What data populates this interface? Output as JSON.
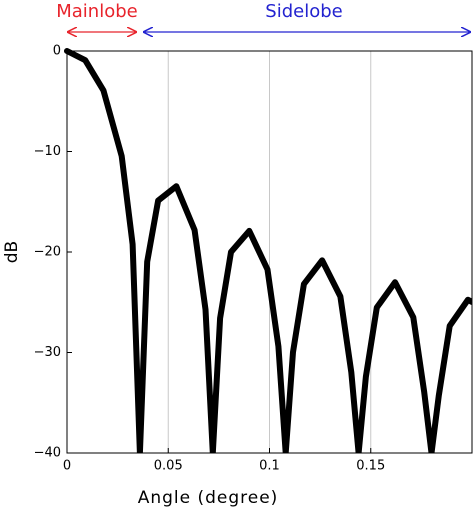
{
  "chart_data": {
    "type": "line",
    "xlabel": "Angle (degree)",
    "ylabel": "dB",
    "annotations": [
      "Mainlobe",
      "Sidelobe"
    ],
    "x": [
      0,
      0.009,
      0.018,
      0.027,
      0.0324,
      0.036,
      0.0396,
      0.045,
      0.054,
      0.063,
      0.0684,
      0.072,
      0.0756,
      0.081,
      0.09,
      0.099,
      0.1044,
      0.108,
      0.1116,
      0.117,
      0.126,
      0.135,
      0.1404,
      0.144,
      0.1476,
      0.153,
      0.162,
      0.171,
      0.1764,
      0.18,
      0.1836,
      0.189,
      0.198,
      0.2
    ],
    "values": [
      0,
      -0.91,
      -3.92,
      -10.45,
      -19.23,
      -40,
      -20.97,
      -14.89,
      -13.46,
      -17.81,
      -25.72,
      -40,
      -26.59,
      -20.0,
      -17.9,
      -21.74,
      -29.39,
      -40,
      -29.97,
      -23.19,
      -20.83,
      -24.43,
      -31.97,
      -40,
      -32.4,
      -25.52,
      -23.01,
      -26.49,
      -33.94,
      -40,
      -34.29,
      -27.35,
      -24.75,
      -24.97
    ],
    "color": "#000000",
    "xlim": [
      0,
      0.2
    ],
    "ylim": [
      -40,
      0
    ],
    "xticks": [
      0,
      0.05,
      0.1,
      0.15
    ],
    "yticks": [
      {
        "value": -40,
        "label": "−40"
      },
      {
        "value": -30,
        "label": "−30"
      },
      {
        "value": -20,
        "label": "−20"
      },
      {
        "value": -10,
        "label": "−10"
      },
      0
    ],
    "grid": "x"
  }
}
